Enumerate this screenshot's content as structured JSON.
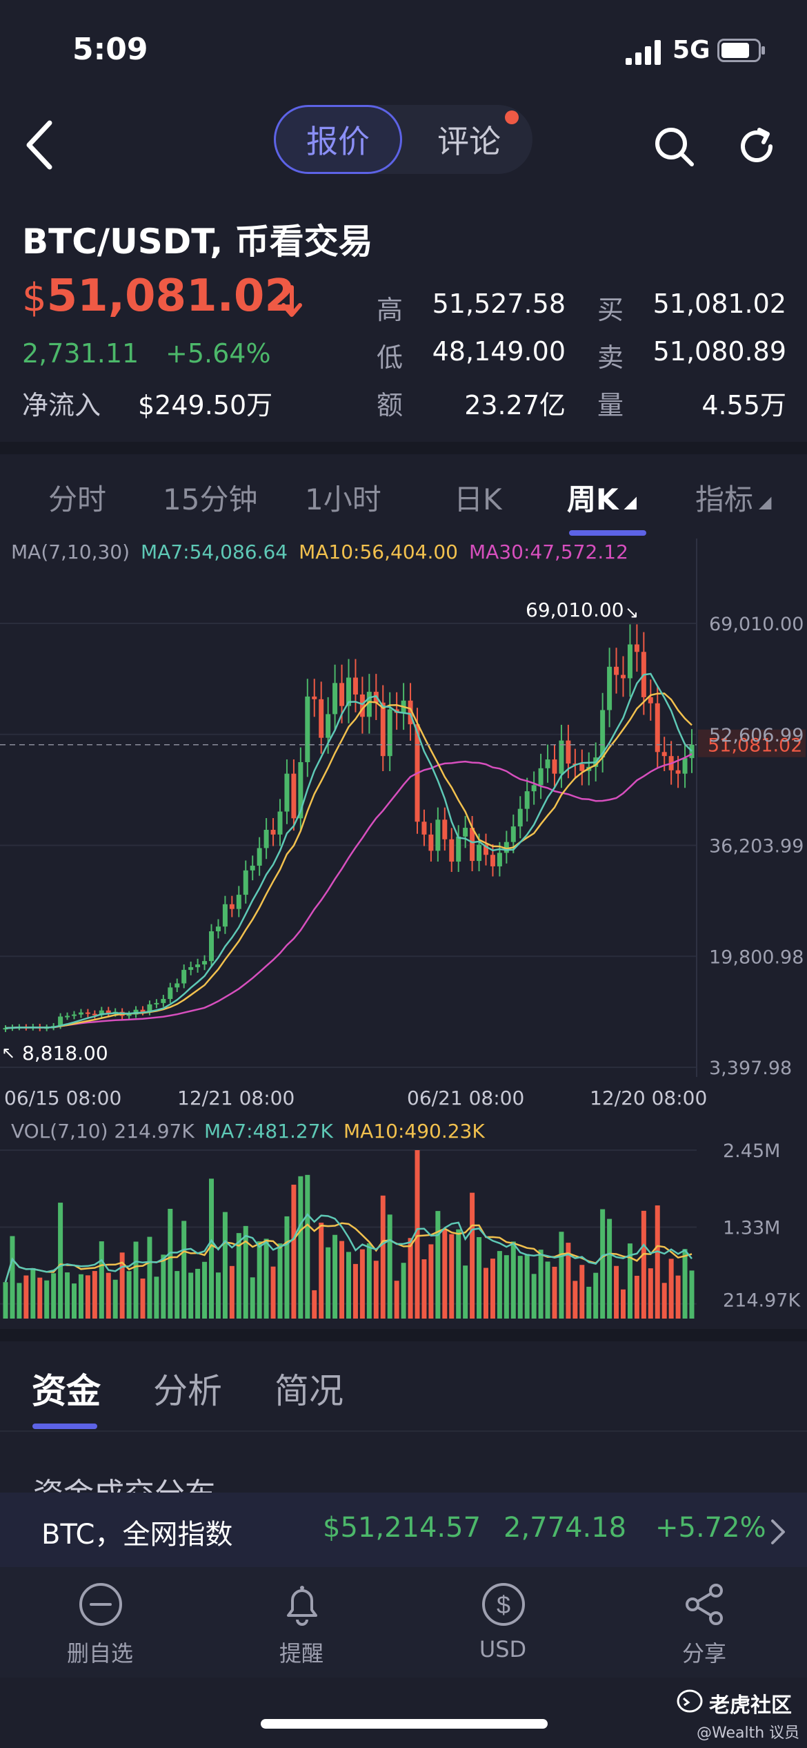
{
  "status_bar": {
    "time": "5:09",
    "network": "5G"
  },
  "header": {
    "tabs": [
      {
        "label": "报价",
        "active": true
      },
      {
        "label": "评论",
        "active": false,
        "has_dot": true
      }
    ],
    "icons": [
      "back-arrow-icon",
      "search-icon",
      "refresh-icon"
    ]
  },
  "quote": {
    "pair": "BTC/USDT, 币看交易",
    "currency_symbol": "$",
    "price": "51,081.02",
    "change": "2,731.11",
    "change_pct": "+5.64%",
    "net_inflow_label": "净流入",
    "net_inflow_value": "$249.50万",
    "stats": [
      {
        "label": "高",
        "value": "51,527.58"
      },
      {
        "label": "低",
        "value": "48,149.00"
      },
      {
        "label": "额",
        "value": "23.27亿"
      },
      {
        "label": "买",
        "value": "51,081.02"
      },
      {
        "label": "卖",
        "value": "51,080.89"
      },
      {
        "label": "量",
        "value": "4.55万"
      }
    ]
  },
  "period_tabs": [
    "分时",
    "15分钟",
    "1小时",
    "日K",
    "周K",
    "指标"
  ],
  "active_period": "周K",
  "chart_data": {
    "type": "candlestick",
    "ma_legend": {
      "label": "MA(7,10,30)",
      "ma7": "MA7:54,086.64",
      "ma10": "MA10:56,404.00",
      "ma30": "MA30:47,572.12"
    },
    "y_ticks": [
      "69,010.00",
      "52,606.99",
      "36,203.99",
      "19,800.98",
      "3,397.98"
    ],
    "current_price_label": "51,081.02",
    "high_annotation": "69,010.00",
    "low_annotation": "8,818.00",
    "x_ticks": [
      "06/15 08:00",
      "12/21 08:00",
      "06/21 08:00",
      "12/20 08:00"
    ],
    "ylim": [
      3397.98,
      69010.0
    ],
    "colors": {
      "up": "#4cb86a",
      "down": "#ef5a45",
      "ma7": "#5ec9b6",
      "ma10": "#f2c14e",
      "ma30": "#d74fbe"
    },
    "closes": [
      9200,
      9300,
      9350,
      9250,
      9400,
      9150,
      9300,
      9500,
      10900,
      11000,
      11200,
      11500,
      11300,
      11100,
      11800,
      11400,
      11600,
      11000,
      11200,
      11900,
      11600,
      12700,
      12900,
      13500,
      15200,
      15800,
      17800,
      18200,
      18600,
      19100,
      23500,
      24200,
      27500,
      26800,
      28900,
      32500,
      33200,
      35800,
      38500,
      37800,
      41200,
      46800,
      40200,
      48500,
      58200,
      57800,
      52100,
      55600,
      60200,
      56800,
      61000,
      58500,
      55200,
      58900,
      57300,
      49400,
      56300,
      55800,
      57600,
      54100,
      39700,
      37800,
      35400,
      40000,
      37100,
      33800,
      37500,
      38800,
      33900,
      36300,
      34800,
      33100,
      35100,
      36700,
      39000,
      41600,
      44200,
      45100,
      47600,
      48900,
      46800,
      51700,
      48300,
      48200,
      47200,
      47800,
      49200,
      56200,
      62600,
      61400,
      60900,
      65900,
      64800,
      58100,
      57200,
      50000,
      49400,
      47300,
      46800,
      49100,
      51081
    ],
    "volume": {
      "legend_label": "VOL(7,10)",
      "current": "214.97K",
      "ma7": "MA7:481.27K",
      "ma10": "MA10:490.23K",
      "y_ticks": [
        "2.45M",
        "1.33M",
        "214.97K"
      ],
      "ylim_k": [
        0,
        2450
      ]
    }
  },
  "bottom_tabs": [
    "资金",
    "分析",
    "简况"
  ],
  "active_bottom_tab": "资金",
  "section_title": "资金成交分布",
  "ticker": {
    "name": "BTC，全网指数",
    "price": "$51,214.57",
    "change": "2,774.18",
    "change_pct": "+5.72%"
  },
  "nav": [
    {
      "label": "删自选",
      "icon": "remove-watchlist-icon"
    },
    {
      "label": "提醒",
      "icon": "bell-icon"
    },
    {
      "label": "USD",
      "icon": "dollar-icon"
    },
    {
      "label": "分享",
      "icon": "share-icon"
    }
  ],
  "watermark": {
    "brand": "老虎社区",
    "sub": "@Wealth 议员"
  }
}
